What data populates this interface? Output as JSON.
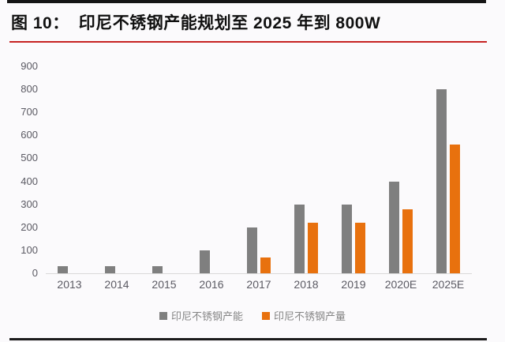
{
  "figure": {
    "label": "图 10：",
    "title": "印尼不锈钢产能规划至 2025 年到 800W"
  },
  "chart_data": {
    "type": "bar",
    "categories": [
      "2013",
      "2014",
      "2015",
      "2016",
      "2017",
      "2018",
      "2019",
      "2020E",
      "2025E"
    ],
    "series": [
      {
        "name": "印尼不锈钢产能",
        "color": "#7F7F7F",
        "values": [
          30,
          30,
          30,
          100,
          200,
          300,
          300,
          400,
          800
        ]
      },
      {
        "name": "印尼不锈钢产量",
        "color": "#E8710E",
        "values": [
          0,
          0,
          0,
          0,
          70,
          220,
          220,
          280,
          560
        ]
      }
    ],
    "title": "印尼不锈钢产能规划至 2025 年到 800W",
    "xlabel": "",
    "ylabel": "",
    "ylim": [
      0,
      900
    ],
    "ytick_step": 100,
    "yticks": [
      0,
      100,
      200,
      300,
      400,
      500,
      600,
      700,
      800,
      900
    ],
    "grid": false,
    "legend_position": "bottom"
  },
  "colors": {
    "bar_capacity": "#7F7F7F",
    "bar_production": "#E8710E",
    "title_text": "#101010",
    "title_underline_red": "#C62222",
    "frame_black": "#1B1B1B",
    "axis_text": "#5B5A63",
    "legend_text": "#848484",
    "axis_line": "#D9D9D9",
    "background": "#FBFAFC"
  }
}
